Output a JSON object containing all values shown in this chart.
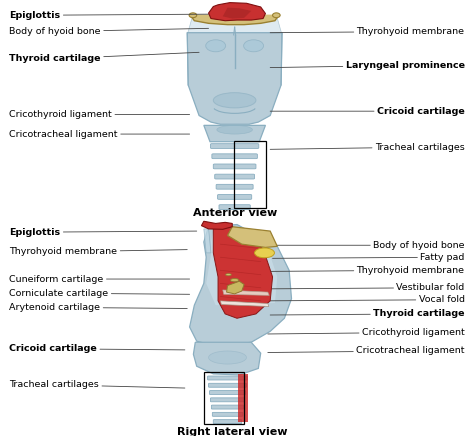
{
  "background_color": "#ffffff",
  "title_anterior": "Anterior view",
  "title_lateral": "Right lateral view",
  "title_fontsize": 8,
  "label_fontsize": 6.8,
  "fig_width": 4.74,
  "fig_height": 4.36,
  "light_blue": "#b8cdd8",
  "mid_blue": "#8aaec0",
  "dark_blue": "#6090a8",
  "bone_color": "#d4c07a",
  "red_color": "#c83030",
  "dark_red": "#982020",
  "muscle_red": "#cc3333",
  "anterior_labels_left": [
    {
      "text": "Epiglottis",
      "bold": true,
      "xt": 0.02,
      "yt": 0.93,
      "xa": 0.44,
      "ya": 0.935
    },
    {
      "text": "Body of hyoid bone",
      "bold": false,
      "xt": 0.02,
      "yt": 0.855,
      "xa": 0.44,
      "ya": 0.87
    },
    {
      "text": "Thyroid cartilage",
      "bold": true,
      "xt": 0.02,
      "yt": 0.73,
      "xa": 0.42,
      "ya": 0.76
    },
    {
      "text": "Cricothyroid ligament",
      "bold": false,
      "xt": 0.02,
      "yt": 0.475,
      "xa": 0.4,
      "ya": 0.475
    },
    {
      "text": "Cricotracheal ligament",
      "bold": false,
      "xt": 0.02,
      "yt": 0.385,
      "xa": 0.4,
      "ya": 0.385
    }
  ],
  "anterior_labels_right": [
    {
      "text": "Thyrohyoid membrane",
      "bold": false,
      "xt": 0.98,
      "yt": 0.855,
      "xa": 0.57,
      "ya": 0.85
    },
    {
      "text": "Laryngeal prominence",
      "bold": true,
      "xt": 0.98,
      "yt": 0.7,
      "xa": 0.57,
      "ya": 0.69
    },
    {
      "text": "Cricoid cartilage",
      "bold": true,
      "xt": 0.98,
      "yt": 0.49,
      "xa": 0.57,
      "ya": 0.49
    },
    {
      "text": "Tracheal cartilages",
      "bold": false,
      "xt": 0.98,
      "yt": 0.325,
      "xa": 0.57,
      "ya": 0.315
    }
  ],
  "lateral_labels_left": [
    {
      "text": "Epiglottis",
      "bold": true,
      "xt": 0.02,
      "yt": 0.935,
      "xa": 0.415,
      "ya": 0.94
    },
    {
      "text": "Thyrohyoid membrane",
      "bold": false,
      "xt": 0.02,
      "yt": 0.845,
      "xa": 0.395,
      "ya": 0.855
    },
    {
      "text": "Cuneiform cartilage",
      "bold": false,
      "xt": 0.02,
      "yt": 0.72,
      "xa": 0.4,
      "ya": 0.72
    },
    {
      "text": "Corniculate cartilage",
      "bold": false,
      "xt": 0.02,
      "yt": 0.655,
      "xa": 0.4,
      "ya": 0.65
    },
    {
      "text": "Arytenoid cartilage",
      "bold": false,
      "xt": 0.02,
      "yt": 0.59,
      "xa": 0.395,
      "ya": 0.585
    },
    {
      "text": "Cricoid cartilage",
      "bold": true,
      "xt": 0.02,
      "yt": 0.4,
      "xa": 0.39,
      "ya": 0.395
    },
    {
      "text": "Tracheal cartilages",
      "bold": false,
      "xt": 0.02,
      "yt": 0.235,
      "xa": 0.39,
      "ya": 0.22
    }
  ],
  "lateral_labels_right": [
    {
      "text": "Body of hyoid bone",
      "bold": false,
      "xt": 0.98,
      "yt": 0.875,
      "xa": 0.58,
      "ya": 0.875
    },
    {
      "text": "Fatty pad",
      "bold": false,
      "xt": 0.98,
      "yt": 0.82,
      "xa": 0.575,
      "ya": 0.815
    },
    {
      "text": "Thyrohyoid membrane",
      "bold": false,
      "xt": 0.98,
      "yt": 0.76,
      "xa": 0.565,
      "ya": 0.755
    },
    {
      "text": "Vestibular fold",
      "bold": false,
      "xt": 0.98,
      "yt": 0.68,
      "xa": 0.565,
      "ya": 0.675
    },
    {
      "text": "Vocal fold",
      "bold": false,
      "xt": 0.98,
      "yt": 0.625,
      "xa": 0.56,
      "ya": 0.62
    },
    {
      "text": "Thyroid cartilage",
      "bold": true,
      "xt": 0.98,
      "yt": 0.56,
      "xa": 0.57,
      "ya": 0.555
    },
    {
      "text": "Cricothyroid ligament",
      "bold": false,
      "xt": 0.98,
      "yt": 0.475,
      "xa": 0.565,
      "ya": 0.468
    },
    {
      "text": "Cricotracheal ligament",
      "bold": false,
      "xt": 0.98,
      "yt": 0.39,
      "xa": 0.565,
      "ya": 0.383
    }
  ]
}
